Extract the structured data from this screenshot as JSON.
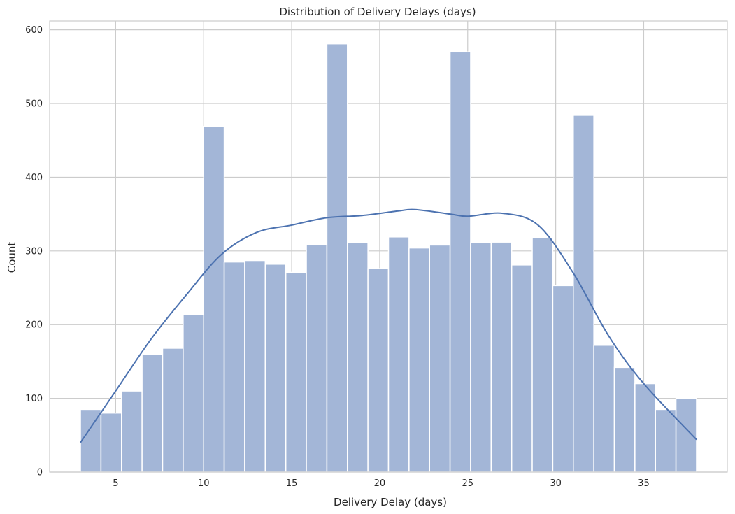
{
  "chart_data": {
    "type": "bar",
    "title": "Distribution of Delivery Delays (days)",
    "xlabel": "Delivery Delay (days)",
    "ylabel": "Count",
    "xlim": [
      1.25,
      39.75
    ],
    "ylim": [
      0,
      612
    ],
    "x_ticks": [
      5,
      10,
      15,
      20,
      25,
      30,
      35
    ],
    "y_ticks": [
      0,
      100,
      200,
      300,
      400,
      500,
      600
    ],
    "grid": true,
    "bin_edges": [
      3.0,
      4.1667,
      5.3333,
      6.5,
      7.6667,
      8.8333,
      10.0,
      11.1667,
      12.3333,
      13.5,
      14.6667,
      15.8333,
      17.0,
      18.1667,
      19.3333,
      20.5,
      21.6667,
      22.8333,
      24.0,
      25.1667,
      26.3333,
      27.5,
      28.6667,
      29.8333,
      31.0,
      32.1667,
      33.3333,
      34.5,
      35.6667,
      36.8333,
      38.0
    ],
    "values": [
      85,
      80,
      110,
      160,
      168,
      214,
      469,
      285,
      287,
      282,
      271,
      309,
      581,
      311,
      276,
      319,
      304,
      308,
      570,
      311,
      312,
      281,
      318,
      253,
      484,
      172,
      142,
      120,
      85,
      100
    ],
    "kde": {
      "x": [
        3,
        5,
        7,
        9,
        11,
        13,
        15,
        17,
        19,
        21,
        22,
        24,
        25,
        27,
        29,
        31,
        33,
        35,
        38
      ],
      "y": [
        40,
        110,
        180,
        240,
        295,
        325,
        335,
        345,
        348,
        354,
        356,
        350,
        347,
        351,
        335,
        270,
        185,
        120,
        44
      ]
    },
    "colors": {
      "bar": "#a3b6d7",
      "bar_edge": "#ffffff",
      "kde_line": "#4c72b0",
      "grid": "#cccccc",
      "axis": "#cccccc"
    }
  }
}
